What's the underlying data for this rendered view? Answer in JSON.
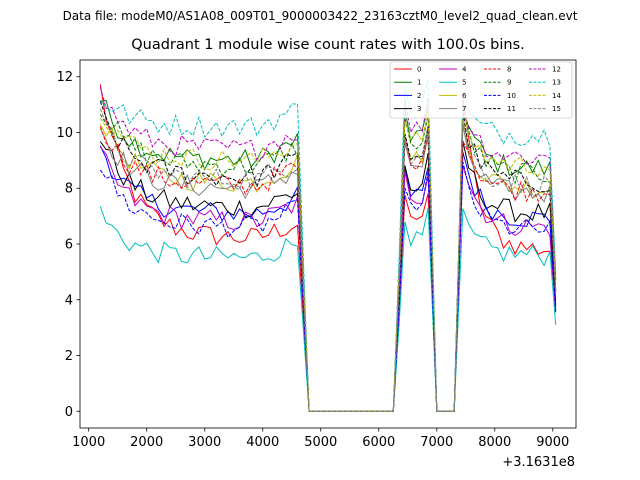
{
  "suptitle": "Data file: modeM0/AS1A08_009T01_9000003422_23163cztM0_level2_quad_clean.evt",
  "chart_data": {
    "type": "line",
    "title": "Quadrant 1 module wise count rates with 100.0s bins.",
    "xlabel": "",
    "ylabel": "",
    "x_offset_label": "+3.1631e8",
    "xlim": [
      850,
      9400
    ],
    "ylim": [
      -0.6,
      12.6
    ],
    "x_ticks": [
      1000,
      2000,
      3000,
      4000,
      5000,
      6000,
      7000,
      8000,
      9000
    ],
    "y_ticks": [
      0,
      2,
      4,
      6,
      8,
      10,
      12
    ],
    "legend_position": "top-right",
    "series": [
      {
        "name": "0",
        "color": "#ff0000",
        "dash": "solid",
        "level1": 6.2,
        "level2": 6.9,
        "level3": 5.8,
        "start": 11.6,
        "end": 4.0
      },
      {
        "name": "1",
        "color": "#008000",
        "dash": "solid",
        "level1": 9.0,
        "level2": 9.9,
        "level3": 8.7,
        "start": 11.2,
        "end": 4.7
      },
      {
        "name": "2",
        "color": "#0000ff",
        "dash": "solid",
        "level1": 7.1,
        "level2": 7.8,
        "level3": 6.9,
        "start": 9.6,
        "end": 3.7
      },
      {
        "name": "3",
        "color": "#000000",
        "dash": "solid",
        "level1": 7.3,
        "level2": 8.0,
        "level3": 7.1,
        "start": 9.9,
        "end": 3.8
      },
      {
        "name": "4",
        "color": "#bf00bf",
        "dash": "solid",
        "level1": 6.8,
        "level2": 7.6,
        "level3": 6.6,
        "start": 9.3,
        "end": 3.6
      },
      {
        "name": "5",
        "color": "#00bfbf",
        "dash": "solid",
        "level1": 5.5,
        "level2": 6.2,
        "level3": 5.6,
        "start": 7.1,
        "end": 3.1
      },
      {
        "name": "6",
        "color": "#bfbf00",
        "dash": "solid",
        "level1": 8.2,
        "level2": 9.1,
        "level3": 8.0,
        "start": 10.6,
        "end": 4.3
      },
      {
        "name": "7",
        "color": "#808080",
        "dash": "solid",
        "level1": 8.0,
        "level2": 8.8,
        "level3": 7.8,
        "start": 10.2,
        "end": 4.2
      },
      {
        "name": "8",
        "color": "#ff0000",
        "dash": "dashed",
        "level1": 8.1,
        "level2": 8.9,
        "level3": 7.9,
        "start": 10.4,
        "end": 4.3
      },
      {
        "name": "9",
        "color": "#008000",
        "dash": "dashed",
        "level1": 8.8,
        "level2": 9.6,
        "level3": 8.5,
        "start": 11.0,
        "end": 4.6
      },
      {
        "name": "10",
        "color": "#0000ff",
        "dash": "dashed",
        "level1": 6.6,
        "level2": 7.4,
        "level3": 6.5,
        "start": 8.9,
        "end": 3.5
      },
      {
        "name": "11",
        "color": "#000000",
        "dash": "dashed",
        "level1": 8.4,
        "level2": 9.2,
        "level3": 8.2,
        "start": 10.8,
        "end": 4.4
      },
      {
        "name": "12",
        "color": "#bf00bf",
        "dash": "dashed",
        "level1": 9.4,
        "level2": 10.2,
        "level3": 9.1,
        "start": 11.4,
        "end": 4.8
      },
      {
        "name": "13",
        "color": "#00bfbf",
        "dash": "dashed",
        "level1": 10.2,
        "level2": 11.0,
        "level3": 9.9,
        "start": 11.3,
        "end": 5.0
      },
      {
        "name": "14",
        "color": "#bfbf00",
        "dash": "dashed",
        "level1": 9.0,
        "level2": 9.8,
        "level3": 8.8,
        "start": 10.9,
        "end": 4.5
      },
      {
        "name": "15",
        "color": "#808080",
        "dash": "dashed",
        "level1": 8.3,
        "level2": 9.1,
        "level3": 8.1,
        "start": 10.5,
        "end": 4.3
      }
    ],
    "segments": {
      "seg1": [
        1200,
        4600
      ],
      "drop1": 4800,
      "zero1": [
        4800,
        6250
      ],
      "seg2": [
        6400,
        6850
      ],
      "zero2": [
        7000,
        7300
      ],
      "seg3": [
        7450,
        9000
      ],
      "final": 9050
    }
  }
}
